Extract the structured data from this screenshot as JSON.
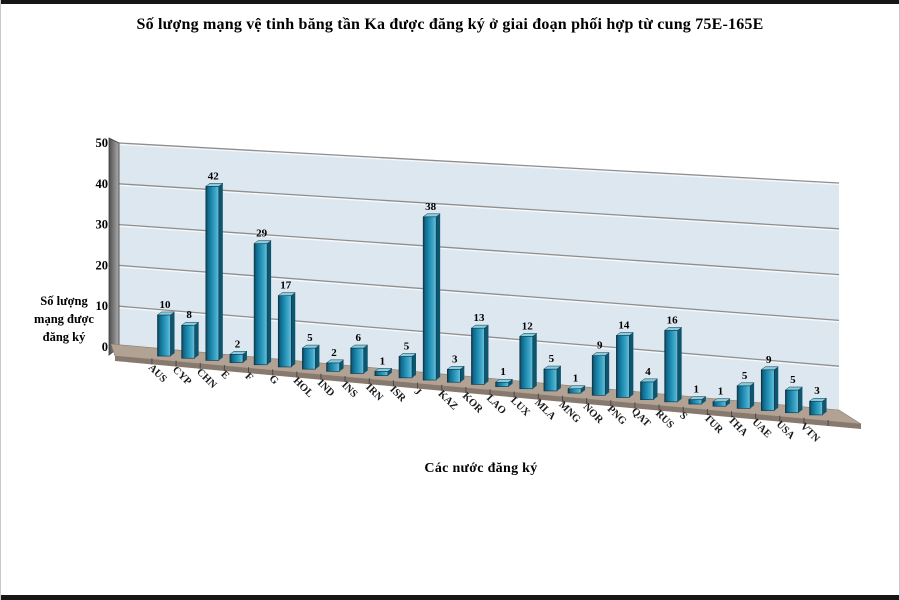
{
  "chart_data": {
    "type": "bar",
    "style": "3d-column",
    "title": "Số lượng mạng vệ tinh băng tần Ka được đăng ký ở giai đoạn phối hợp từ cung 75E-165E",
    "xlabel": "Các nước đăng ký",
    "ylabel": "Số lượng mạng được đăng ký",
    "ylim": [
      0,
      50
    ],
    "yticks": [
      0,
      10,
      20,
      30,
      40,
      50
    ],
    "grid": true,
    "legend": false,
    "value_labels_shown": true,
    "categories": [
      "AUS",
      "CYP",
      "CHN",
      "E",
      "F",
      "G",
      "HOL",
      "IND",
      "INS",
      "IRN",
      "ISR",
      "J",
      "KAZ",
      "KOR",
      "LAO",
      "LUX",
      "MLA",
      "MNG",
      "NOR",
      "PNG",
      "QAT",
      "RUS",
      "S",
      "TUR",
      "THA",
      "UAE",
      "USA",
      "VTN"
    ],
    "values": [
      10,
      8,
      42,
      2,
      29,
      17,
      5,
      2,
      6,
      1,
      5,
      38,
      3,
      13,
      1,
      12,
      5,
      1,
      9,
      14,
      4,
      16,
      1,
      1,
      5,
      9,
      5,
      3
    ],
    "bar_color": "#1f85ab",
    "bar_top_color": "#8accdf",
    "bar_side_color": "#0e566f",
    "wall_color": "#dde7f0",
    "floor_color": "#b2a294",
    "gridline_color": "#8f8f8f"
  }
}
